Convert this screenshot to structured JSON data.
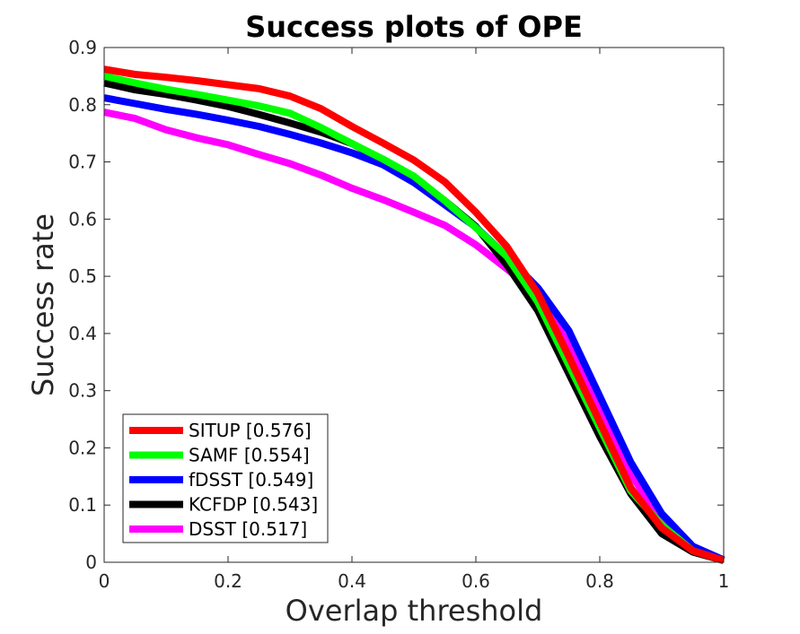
{
  "chart_data": {
    "type": "line",
    "title": "Success plots of OPE",
    "xlabel": "Overlap threshold",
    "ylabel": "Success rate",
    "xlim": [
      0,
      1
    ],
    "ylim": [
      0,
      0.9
    ],
    "xticks": [
      0,
      0.2,
      0.4,
      0.6,
      0.8,
      1
    ],
    "xtick_labels": [
      "0",
      "0.2",
      "0.4",
      "0.6",
      "0.8",
      "1"
    ],
    "yticks": [
      0,
      0.1,
      0.2,
      0.3,
      0.4,
      0.5,
      0.6,
      0.7,
      0.8,
      0.9
    ],
    "ytick_labels": [
      "0",
      "0.1",
      "0.2",
      "0.3",
      "0.4",
      "0.5",
      "0.6",
      "0.7",
      "0.8",
      "0.9"
    ],
    "grid": false,
    "legend_position": "bottom-left",
    "x": [
      0,
      0.05,
      0.1,
      0.15,
      0.2,
      0.25,
      0.3,
      0.35,
      0.4,
      0.45,
      0.5,
      0.55,
      0.6,
      0.65,
      0.7,
      0.75,
      0.8,
      0.85,
      0.9,
      0.95,
      1.0
    ],
    "series": [
      {
        "name": "SITUP",
        "label": "SITUP [0.576]",
        "auc": 0.576,
        "color": "#ff0000",
        "values": [
          0.862,
          0.853,
          0.848,
          0.842,
          0.835,
          0.828,
          0.815,
          0.793,
          0.762,
          0.733,
          0.703,
          0.665,
          0.612,
          0.552,
          0.47,
          0.36,
          0.245,
          0.13,
          0.06,
          0.02,
          0.003
        ]
      },
      {
        "name": "SAMF",
        "label": "SAMF [0.554]",
        "auc": 0.554,
        "color": "#00ff00",
        "values": [
          0.85,
          0.838,
          0.827,
          0.818,
          0.808,
          0.798,
          0.785,
          0.76,
          0.732,
          0.705,
          0.675,
          0.632,
          0.585,
          0.535,
          0.455,
          0.345,
          0.235,
          0.125,
          0.065,
          0.02,
          0.003
        ]
      },
      {
        "name": "fDSST",
        "label": "fDSST [0.549]",
        "auc": 0.549,
        "color": "#0000ff",
        "values": [
          0.812,
          0.802,
          0.792,
          0.783,
          0.773,
          0.762,
          0.748,
          0.733,
          0.716,
          0.695,
          0.664,
          0.625,
          0.586,
          0.535,
          0.48,
          0.405,
          0.29,
          0.175,
          0.085,
          0.028,
          0.004
        ]
      },
      {
        "name": "KCFDP",
        "label": "KCFDP [0.543]",
        "auc": 0.543,
        "color": "#000000",
        "values": [
          0.838,
          0.826,
          0.818,
          0.808,
          0.797,
          0.783,
          0.768,
          0.752,
          0.732,
          0.703,
          0.673,
          0.632,
          0.587,
          0.52,
          0.44,
          0.33,
          0.22,
          0.12,
          0.05,
          0.018,
          0.003
        ]
      },
      {
        "name": "DSST",
        "label": "DSST [0.517]",
        "auc": 0.517,
        "color": "#ff00ff",
        "values": [
          0.787,
          0.776,
          0.756,
          0.742,
          0.73,
          0.713,
          0.697,
          0.677,
          0.654,
          0.634,
          0.612,
          0.589,
          0.555,
          0.513,
          0.47,
          0.38,
          0.265,
          0.155,
          0.07,
          0.022,
          0.003
        ]
      }
    ]
  }
}
